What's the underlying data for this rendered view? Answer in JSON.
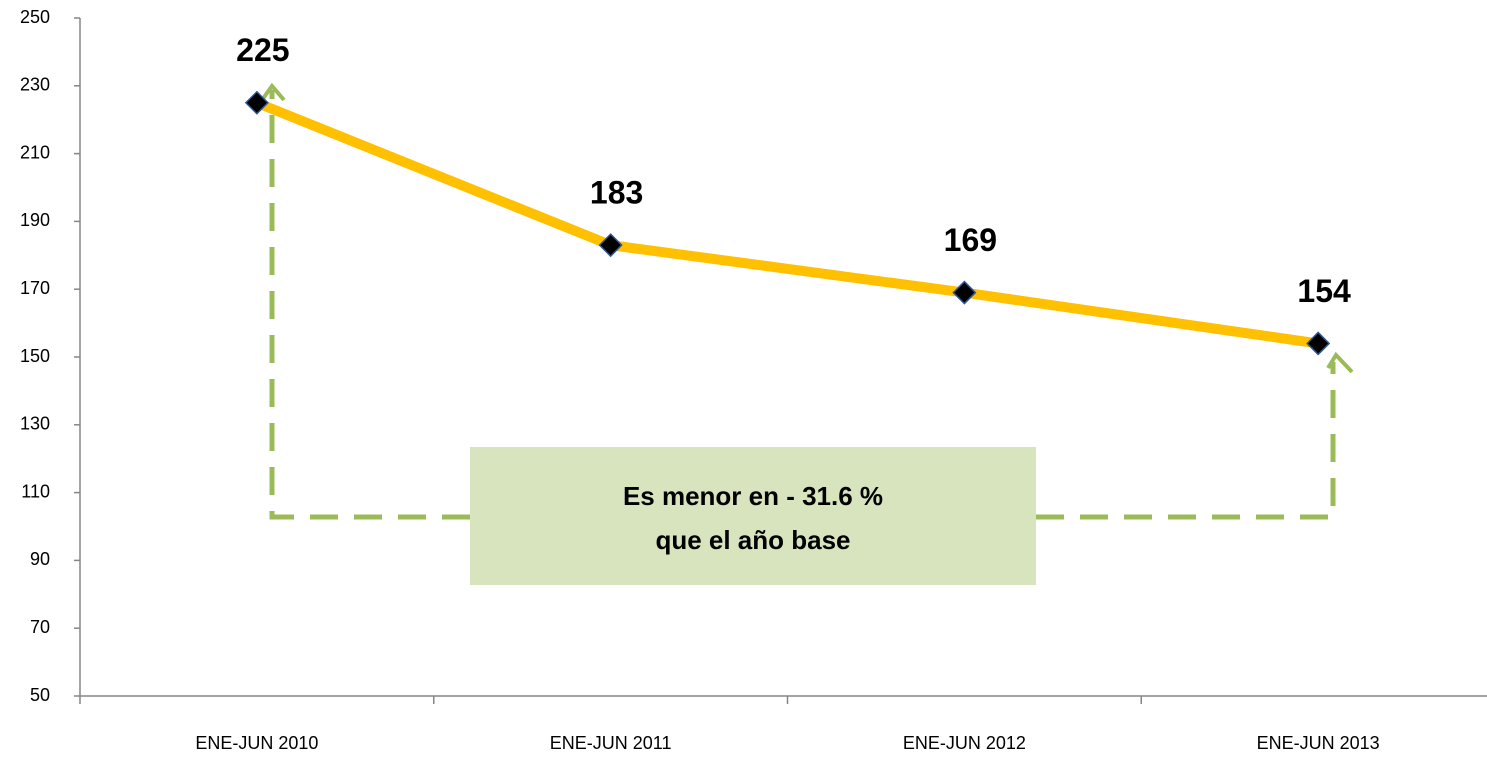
{
  "chart_data": {
    "type": "line",
    "categories": [
      "ENE-JUN 2010",
      "ENE-JUN 2011",
      "ENE-JUN 2012",
      "ENE-JUN 2013"
    ],
    "series": [
      {
        "color": "#ffc000",
        "marker_color": "#000000",
        "values": [
          225,
          183,
          169,
          154
        ]
      }
    ],
    "ylim": [
      50,
      250
    ],
    "yticks": [
      50,
      70,
      90,
      110,
      130,
      150,
      170,
      190,
      210,
      230,
      250
    ],
    "grid": false,
    "data_labels": true,
    "annotation": [
      "Es menor en - 31.6 %",
      "que el año base"
    ]
  }
}
